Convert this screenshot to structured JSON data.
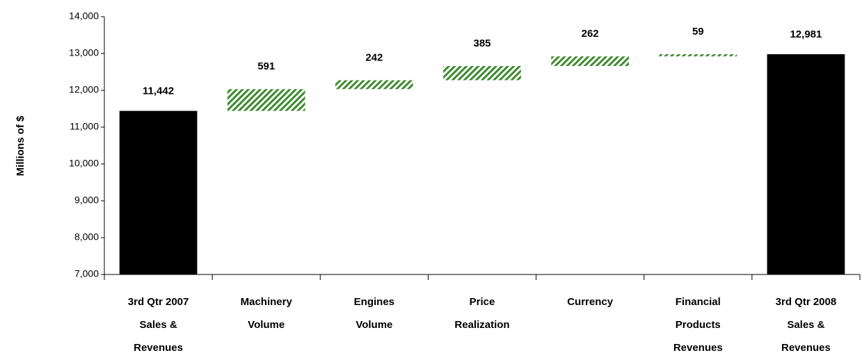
{
  "chart_data": {
    "type": "waterfall",
    "ylabel": "Millions of $",
    "categories": [
      [
        "3rd Qtr 2007",
        "Sales &",
        "Revenues"
      ],
      [
        "Machinery",
        "Volume"
      ],
      [
        "Engines",
        "Volume"
      ],
      [
        "Price",
        "Realization"
      ],
      [
        "Currency"
      ],
      [
        "Financial",
        "Products",
        "Revenues"
      ],
      [
        "3rd Qtr 2008",
        "Sales &",
        "Revenues"
      ]
    ],
    "values": [
      11442,
      591,
      242,
      385,
      262,
      59,
      12981
    ],
    "value_labels": [
      "11,442",
      "591",
      "242",
      "385",
      "262",
      "59",
      "12,981"
    ],
    "is_total": [
      true,
      false,
      false,
      false,
      false,
      false,
      true
    ],
    "total_color": "#000000",
    "delta_color": "#3d8a2e",
    "ylim": [
      7000,
      14000
    ],
    "yticks": [
      {
        "value": 7000,
        "label": "7,000"
      },
      {
        "value": 8000,
        "label": "8,000"
      },
      {
        "value": 9000,
        "label": "9,000"
      },
      {
        "value": 10000,
        "label": "10,000"
      },
      {
        "value": 11000,
        "label": "11,000"
      },
      {
        "value": 12000,
        "label": "12,000"
      },
      {
        "value": 13000,
        "label": "13,000"
      },
      {
        "value": 14000,
        "label": "14,000"
      }
    ]
  }
}
